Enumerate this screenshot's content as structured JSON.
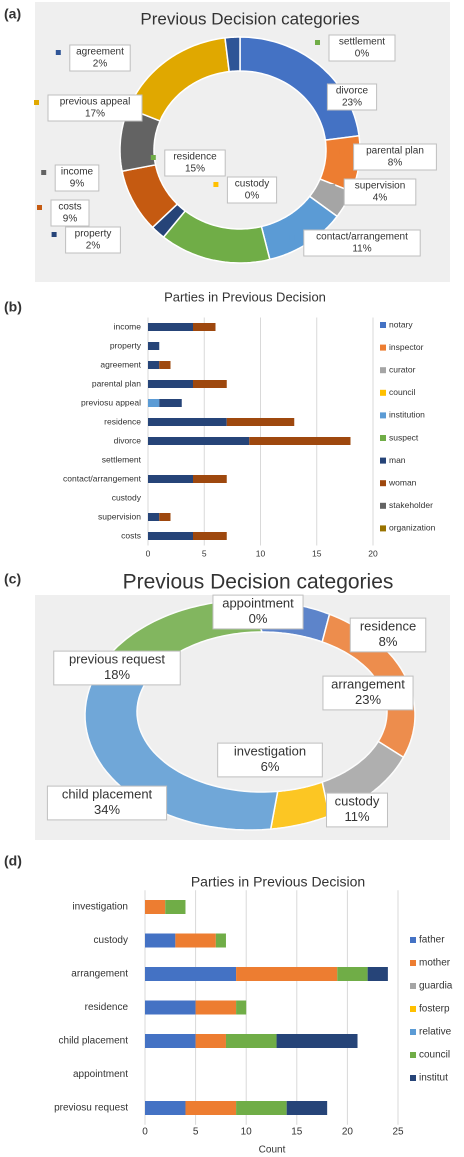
{
  "chart_data": [
    {
      "type": "pie",
      "donut": true,
      "panel_label": "(a)",
      "title": "Previous Decision categories",
      "categories": [
        "settlement",
        "divorce",
        "parental plan",
        "supervision",
        "custody",
        "contact/arrangement",
        "residence",
        "property",
        "costs",
        "income",
        "previous appeal",
        "agreement"
      ],
      "values": [
        0,
        23,
        8,
        4,
        0,
        11,
        15,
        2,
        9,
        9,
        17,
        2
      ],
      "value_labels": [
        "0%",
        "23%",
        "8%",
        "4%",
        "0%",
        "11%",
        "15%",
        "2%",
        "9%",
        "9%",
        "17%",
        "2%"
      ],
      "colors": [
        "#70ad47",
        "#4472c4",
        "#ed7d31",
        "#a5a5a5",
        "#ffc000",
        "#5b9bd5",
        "#70ad47",
        "#264478",
        "#c55a11",
        "#636363",
        "#e0a800",
        "#2f5597"
      ]
    },
    {
      "type": "bar",
      "orientation": "horizontal",
      "stacked": true,
      "panel_label": "(b)",
      "title": "Parties in Previous Decision",
      "categories": [
        "income",
        "property",
        "agreement",
        "parental plan",
        "previosu appeal",
        "residence",
        "divorce",
        "settlement",
        "contact/arrangement",
        "custody",
        "supervision",
        "costs"
      ],
      "series": [
        {
          "name": "notary",
          "color": "#4472c4",
          "values": [
            0,
            0,
            0,
            0,
            0,
            0,
            0,
            0,
            0,
            0,
            0,
            0
          ]
        },
        {
          "name": "inspector",
          "color": "#ed7d31",
          "values": [
            0,
            0,
            0,
            0,
            0,
            0,
            0,
            0,
            0,
            0,
            0,
            0
          ]
        },
        {
          "name": "curator",
          "color": "#a5a5a5",
          "values": [
            0,
            0,
            0,
            0,
            0,
            0,
            0,
            0,
            0,
            0,
            0,
            0
          ]
        },
        {
          "name": "council",
          "color": "#ffc000",
          "values": [
            0,
            0,
            0,
            0,
            0,
            0,
            0,
            0,
            0,
            0,
            0,
            0
          ]
        },
        {
          "name": "institution",
          "color": "#5b9bd5",
          "values": [
            0,
            0,
            0,
            0,
            1,
            0,
            0,
            0,
            0,
            0,
            0,
            0
          ]
        },
        {
          "name": "suspect",
          "color": "#70ad47",
          "values": [
            0,
            0,
            0,
            0,
            0,
            0,
            0,
            0,
            0,
            0,
            0,
            0
          ]
        },
        {
          "name": "man",
          "color": "#264478",
          "values": [
            4,
            1,
            1,
            4,
            2,
            7,
            9,
            0,
            4,
            0,
            1,
            4
          ]
        },
        {
          "name": "woman",
          "color": "#9e480e",
          "values": [
            2,
            0,
            1,
            3,
            0,
            6,
            9,
            0,
            3,
            0,
            1,
            3
          ]
        },
        {
          "name": "stakeholder",
          "color": "#636363",
          "values": [
            0,
            0,
            0,
            0,
            0,
            0,
            0,
            0,
            0,
            0,
            0,
            0
          ]
        },
        {
          "name": "organization",
          "color": "#997300",
          "values": [
            0,
            0,
            0,
            0,
            0,
            0,
            0,
            0,
            0,
            0,
            0,
            0
          ]
        }
      ],
      "xlim": [
        0,
        20
      ],
      "xticks": [
        0,
        5,
        10,
        15,
        20
      ],
      "grid": true,
      "legend": "right"
    },
    {
      "type": "pie",
      "donut": true,
      "panel_label": "(c)",
      "title": "Previous Decision categories",
      "categories": [
        "appointment",
        "residence",
        "arrangement",
        "custody",
        "investigation",
        "child placement",
        "previous request"
      ],
      "values": [
        0,
        8,
        23,
        11,
        6,
        34,
        18
      ],
      "value_labels": [
        "0%",
        "8%",
        "23%",
        "11%",
        "6%",
        "34%",
        "18%"
      ],
      "colors": [
        "#264478",
        "#4472c4",
        "#ed7d31",
        "#a5a5a5",
        "#ffc000",
        "#5b9bd5",
        "#70ad47"
      ]
    },
    {
      "type": "bar",
      "orientation": "horizontal",
      "stacked": true,
      "panel_label": "(d)",
      "title": "Parties in Previous Decision",
      "categories": [
        "investigation",
        "custody",
        "arrangement",
        "residence",
        "child placement",
        "appointment",
        "previosu request"
      ],
      "series": [
        {
          "name": "father",
          "color": "#4472c4",
          "values": [
            0,
            3,
            9,
            5,
            5,
            0,
            4
          ]
        },
        {
          "name": "mother",
          "color": "#ed7d31",
          "values": [
            2,
            4,
            10,
            4,
            3,
            0,
            5
          ]
        },
        {
          "name": "guardia",
          "color": "#a5a5a5",
          "values": [
            0,
            0,
            0,
            0,
            0,
            0,
            0
          ]
        },
        {
          "name": "fosterp",
          "color": "#ffc000",
          "values": [
            0,
            0,
            0,
            0,
            0,
            0,
            0
          ]
        },
        {
          "name": "relative",
          "color": "#5b9bd5",
          "values": [
            0,
            0,
            0,
            0,
            0,
            0,
            0
          ]
        },
        {
          "name": "council",
          "color": "#70ad47",
          "values": [
            2,
            1,
            3,
            1,
            5,
            0,
            5
          ]
        },
        {
          "name": "institut",
          "color": "#264478",
          "values": [
            0,
            0,
            2,
            0,
            8,
            0,
            4
          ]
        }
      ],
      "xlim": [
        0,
        25
      ],
      "xticks": [
        0,
        5,
        10,
        15,
        20,
        25
      ],
      "xlabel": "Count",
      "grid": true,
      "legend": "right"
    }
  ]
}
